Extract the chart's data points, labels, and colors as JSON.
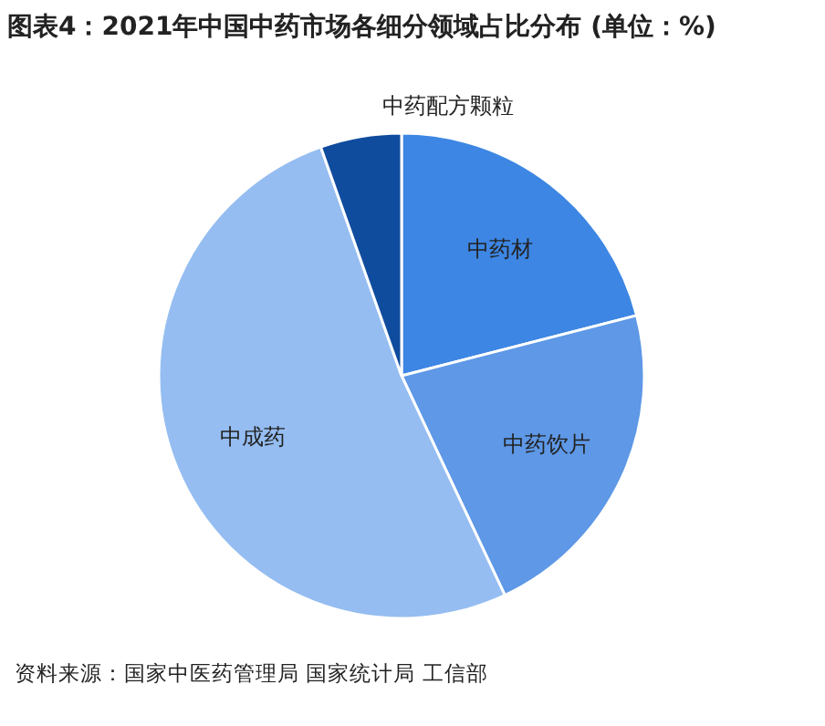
{
  "chart_data": {
    "type": "pie",
    "title": "图表4：2021年中国中药市场各细分领域占比分布 (单位：%)",
    "categories": [
      "中药材",
      "中药饮片",
      "中成药",
      "中药配方颗粒"
    ],
    "values": [
      21,
      22,
      51.6,
      5.4
    ],
    "colors": [
      "#3d86e3",
      "#5e98e6",
      "#95bdf1",
      "#104c9e"
    ],
    "annotations": [
      "资料来源：国家中医药管理局 国家统计局 工信部"
    ]
  }
}
